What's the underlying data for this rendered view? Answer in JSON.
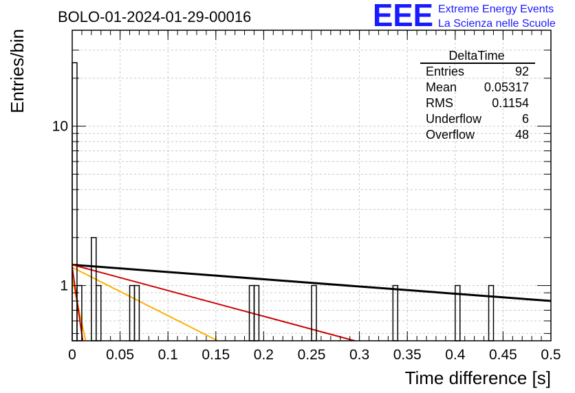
{
  "header": {
    "run_title": "BOLO-01-2024-01-29-00016",
    "logo_mark": "EEE",
    "logo_line1": "Extreme Energy Events",
    "logo_line2": "La Scienza nelle Scuole"
  },
  "stats": {
    "name": "DeltaTime",
    "rows": [
      {
        "label": "Entries",
        "value": "92"
      },
      {
        "label": "Mean",
        "value": "0.05317"
      },
      {
        "label": "RMS",
        "value": "0.1154"
      },
      {
        "label": "Underflow",
        "value": "6"
      },
      {
        "label": "Overflow",
        "value": "48"
      }
    ]
  },
  "colors": {
    "fit_black": "#000000",
    "fit_red": "#cc0000",
    "fit_orange": "#ffb000",
    "histogram": "#000000",
    "grid": "#c8c8c8",
    "logo": "#1a1aff"
  },
  "chart_data": {
    "type": "bar",
    "title": "",
    "xlabel": "Time difference [s]",
    "ylabel": "Entries/bin",
    "xlim": [
      0,
      0.5
    ],
    "ylim": [
      0.45,
      40
    ],
    "y_scale": "log",
    "grid": true,
    "x_ticks": [
      "0",
      "0.05",
      "0.1",
      "0.15",
      "0.2",
      "0.25",
      "0.3",
      "0.35",
      "0.4",
      "0.45",
      "0.5"
    ],
    "y_ticks": [
      "1",
      "10"
    ],
    "bin_width": 0.005,
    "bins": [
      {
        "x": 0.0,
        "value": 25
      },
      {
        "x": 0.005,
        "value": 1
      },
      {
        "x": 0.02,
        "value": 2
      },
      {
        "x": 0.025,
        "value": 1
      },
      {
        "x": 0.06,
        "value": 1
      },
      {
        "x": 0.065,
        "value": 1
      },
      {
        "x": 0.185,
        "value": 1
      },
      {
        "x": 0.19,
        "value": 1
      },
      {
        "x": 0.25,
        "value": 1
      },
      {
        "x": 0.335,
        "value": 1
      },
      {
        "x": 0.4,
        "value": 1
      },
      {
        "x": 0.435,
        "value": 1
      }
    ],
    "fits": [
      {
        "color": "#000000",
        "points": [
          [
            0.0,
            1.35
          ],
          [
            0.5,
            0.8
          ]
        ]
      },
      {
        "color": "#cc0000",
        "points": [
          [
            0.0,
            1.35
          ],
          [
            0.295,
            0.45
          ]
        ]
      },
      {
        "color": "#ffb000",
        "points": [
          [
            0.0,
            1.3
          ],
          [
            0.152,
            0.45
          ]
        ]
      },
      {
        "color": "#ffb000",
        "points": [
          [
            0.0,
            1.1
          ],
          [
            0.014,
            0.45
          ]
        ]
      },
      {
        "color": "#cc0000",
        "points": [
          [
            0.0,
            1.3
          ],
          [
            0.011,
            0.45
          ]
        ]
      }
    ]
  }
}
